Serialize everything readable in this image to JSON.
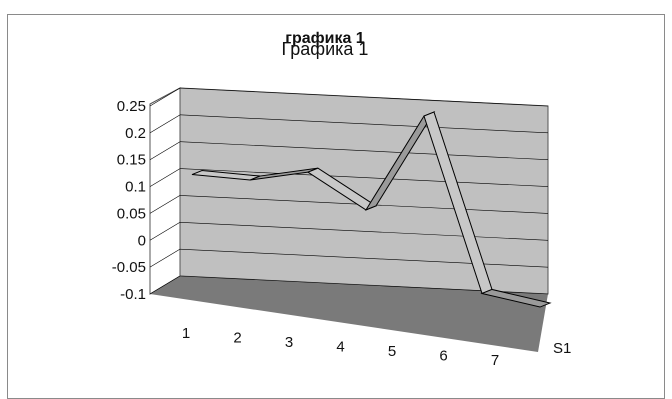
{
  "chart_data": {
    "type": "line",
    "variant": "3d-ribbon",
    "title": "Графика 1",
    "title_overlay": "графика 1",
    "categories": [
      "1",
      "2",
      "3",
      "4",
      "5",
      "6",
      "7"
    ],
    "series": [
      {
        "name": "S1",
        "values": [
          0.09,
          0.085,
          0.105,
          0.04,
          0.22,
          -0.105,
          -0.125
        ]
      }
    ],
    "y_ticks": [
      "0.25",
      "0.2",
      "0.15",
      "0.1",
      "0.05",
      "0",
      "-0.05",
      "-0.1"
    ],
    "ylim": [
      -0.1,
      0.25
    ],
    "grid": true,
    "legend": "none",
    "colors": {
      "back_wall": "#c0c0c0",
      "floor": "#7a7a7a",
      "ribbon_top": "#c8c8c8",
      "ribbon_side": "#9a9a9a",
      "gridline": "#000000",
      "frame_border": "#8a8a8a"
    }
  }
}
